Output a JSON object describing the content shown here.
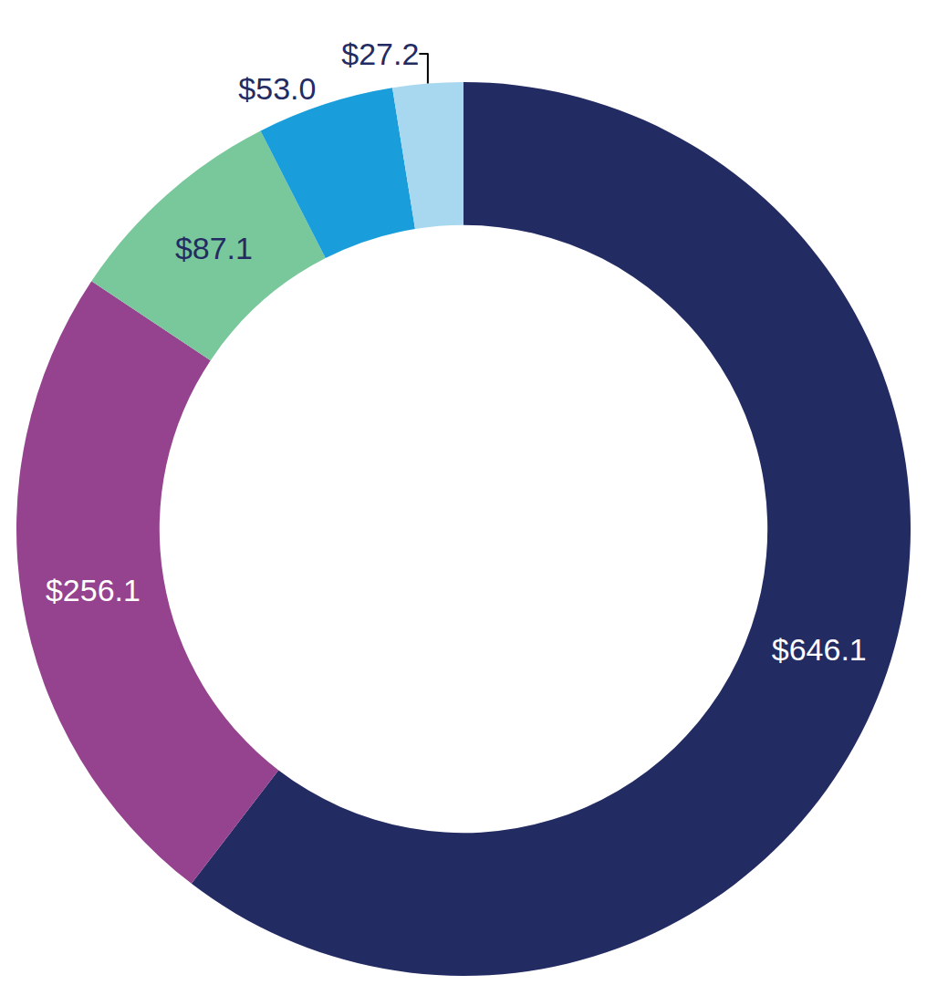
{
  "chart_data": {
    "type": "pie",
    "values": [
      646.1,
      256.1,
      87.1,
      53.0,
      27.2
    ],
    "value_labels": [
      "$646.1",
      "$256.1",
      "$87.1",
      "$53.0",
      "$27.2"
    ],
    "colors": [
      "#232b63",
      "#96438f",
      "#79c89b",
      "#199edb",
      "#a8d8f0"
    ],
    "data_labels": true
  }
}
